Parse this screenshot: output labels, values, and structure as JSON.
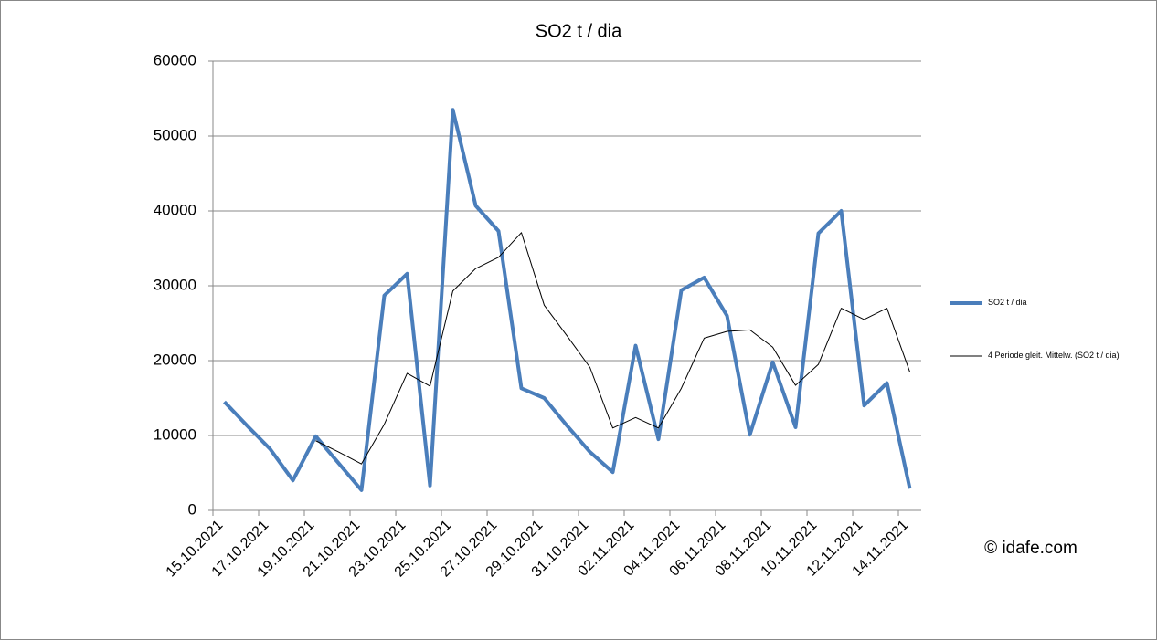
{
  "chart_data": {
    "type": "line",
    "title": "SO2 t / dia",
    "categories": [
      "15.10.2021",
      null,
      "17.10.2021",
      null,
      "19.10.2021",
      null,
      "21.10.2021",
      null,
      "23.10.2021",
      null,
      "25.10.2021",
      null,
      "27.10.2021",
      null,
      "29.10.2021",
      null,
      "31.10.2021",
      null,
      "02.11.2021",
      null,
      "04.11.2021",
      null,
      "06.11.2021",
      null,
      "08.11.2021",
      null,
      "10.11.2021",
      null,
      "12.11.2021",
      null,
      "14.11.2021"
    ],
    "series": [
      {
        "name": "SO2 t / dia",
        "color": "#4a7ebb",
        "values": [
          14500,
          11300,
          8200,
          4000,
          9900,
          6300,
          2700,
          28700,
          31600,
          3300,
          53500,
          40700,
          37300,
          16300,
          15000,
          11300,
          7800,
          5100,
          22000,
          9500,
          29400,
          31100,
          26000,
          10100,
          19800,
          11100,
          37000,
          40000,
          14000,
          17000,
          2900
        ]
      },
      {
        "name": "4 Periode gleit. Mittelw. (SO2 t / dia)",
        "color": "#000000",
        "values": [
          null,
          null,
          null,
          null,
          9300,
          7800,
          6200,
          11500,
          18300,
          16600,
          29300,
          32300,
          33800,
          37100,
          27400,
          23300,
          19100,
          11000,
          12400,
          11000,
          16300,
          23000,
          23900,
          24100,
          21800,
          16700,
          19500,
          27000,
          25500,
          27000,
          18500
        ]
      }
    ],
    "ylim": [
      0,
      60000
    ],
    "yticks": [
      0,
      10000,
      20000,
      30000,
      40000,
      50000,
      60000
    ],
    "grid": true,
    "annotation": "© idafe.com"
  }
}
